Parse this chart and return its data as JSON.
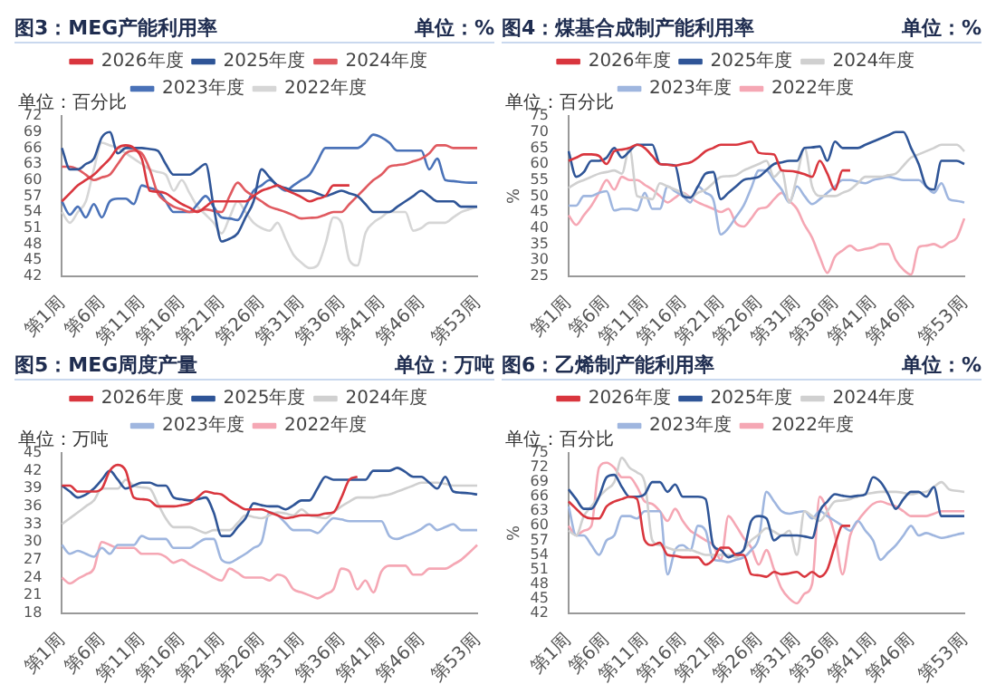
{
  "chart_data": [
    {
      "type": "line",
      "title": "图3：MEG产能利用率",
      "subtitle": "单位：%",
      "annotations": [
        "单位：百分比"
      ],
      "legend": "top",
      "grid": false,
      "categories": [
        "第1周",
        null,
        null,
        null,
        null,
        "第6周",
        null,
        null,
        null,
        null,
        "第11周",
        null,
        null,
        null,
        null,
        "第16周",
        null,
        null,
        null,
        null,
        "第21周",
        null,
        null,
        null,
        null,
        "第26周",
        null,
        null,
        null,
        null,
        "第31周",
        null,
        null,
        null,
        null,
        "第36周",
        null,
        null,
        null,
        null,
        "第41周",
        null,
        null,
        null,
        null,
        "第46周",
        null,
        null,
        null,
        null,
        null,
        null,
        "第53周"
      ],
      "ylim": [
        42,
        72
      ],
      "yticks": [
        42,
        45,
        48,
        51,
        54,
        57,
        60,
        63,
        66,
        69,
        72
      ],
      "series": [
        {
          "name": "2026年度",
          "color": "#d9363e",
          "values": [
            56,
            57.5,
            59,
            60,
            61,
            62.5,
            64,
            66,
            66.5,
            66,
            64,
            58,
            57.8,
            57.5,
            56.5,
            55.5,
            54.8,
            54,
            55,
            56,
            56,
            56,
            56,
            56,
            57,
            58,
            58.5,
            59,
            58.2,
            57.5,
            56.8,
            56,
            56.5,
            57,
            59,
            59,
            59,
            null,
            null,
            null,
            null,
            null,
            null,
            null,
            null,
            null,
            null,
            null,
            null,
            null,
            null,
            null,
            null
          ]
        },
        {
          "name": "2025年度",
          "color": "#2f5597",
          "values": [
            66,
            62,
            62,
            63,
            64,
            68,
            69,
            65,
            66,
            66,
            66,
            65.8,
            65.5,
            63,
            61,
            61,
            61,
            62,
            63,
            55,
            48.5,
            49,
            50,
            53,
            56,
            62,
            60.5,
            59,
            58.5,
            58,
            58,
            58,
            57.5,
            57,
            57.5,
            58,
            57.5,
            57,
            55.5,
            54,
            54,
            54,
            55,
            56,
            57,
            58,
            57,
            56,
            56,
            56,
            55,
            55,
            55
          ]
        },
        {
          "name": "2024年度",
          "color": "#e05a60",
          "values": [
            62.5,
            62.5,
            62,
            61,
            60,
            60.5,
            61,
            63,
            65,
            65.5,
            65,
            62,
            57.5,
            56,
            55,
            54.5,
            54,
            54.2,
            54.5,
            54.2,
            54,
            57,
            59.5,
            58,
            57,
            56,
            55,
            54.5,
            54,
            53.4,
            52.8,
            52.9,
            53,
            53.5,
            54,
            54,
            55.5,
            57,
            58.5,
            60,
            61,
            62.5,
            62.8,
            63,
            63.5,
            64,
            65,
            66.5,
            66.5,
            66,
            66,
            66,
            66
          ]
        },
        {
          "name": "2023年度",
          "color": "#4a72b8",
          "values": [
            56,
            53.5,
            55,
            53,
            55.5,
            53,
            56,
            56.5,
            56.5,
            55.5,
            59,
            58.5,
            58,
            56,
            54,
            54,
            54,
            55.5,
            57,
            55,
            53,
            52.8,
            52.5,
            55,
            58,
            59,
            60,
            59,
            58,
            59,
            60,
            61,
            63.5,
            66,
            66,
            66,
            66,
            66,
            67,
            68.5,
            68,
            67,
            65.5,
            65.5,
            65.5,
            65.5,
            62,
            64,
            60,
            59.8,
            59.6,
            59.5,
            59.5
          ]
        },
        {
          "name": "2022年度",
          "color": "#d6d6d6",
          "values": [
            54,
            52,
            54,
            56,
            62,
            67,
            66.5,
            66,
            65,
            64,
            63,
            62,
            61.5,
            61,
            58,
            60,
            57.5,
            55,
            53.5,
            52,
            50,
            53,
            56,
            54,
            52,
            51,
            50.5,
            52,
            49,
            46,
            44.5,
            43.5,
            44,
            48,
            53,
            52,
            45,
            44,
            50,
            52,
            53,
            54,
            54,
            54,
            50.5,
            51,
            52,
            52,
            52,
            53,
            54,
            54.5,
            55
          ]
        }
      ]
    },
    {
      "type": "line",
      "title": "图4：煤基合成制产能利用率",
      "subtitle": "单位：%",
      "ylabel": "%",
      "annotations": [
        "单位：百分比"
      ],
      "legend": "top",
      "grid": false,
      "categories": [
        "第1周",
        null,
        null,
        null,
        null,
        "第6周",
        null,
        null,
        null,
        null,
        "第11周",
        null,
        null,
        null,
        null,
        "第16周",
        null,
        null,
        null,
        null,
        "第21周",
        null,
        null,
        null,
        null,
        "第26周",
        null,
        null,
        null,
        null,
        "第31周",
        null,
        null,
        null,
        null,
        "第36周",
        null,
        null,
        null,
        null,
        "第41周",
        null,
        null,
        null,
        null,
        "第46周",
        null,
        null,
        null,
        null,
        null,
        null,
        "第53周"
      ],
      "ylim": [
        25,
        75
      ],
      "yticks": [
        25,
        30,
        35,
        40,
        45,
        50,
        55,
        60,
        65,
        70,
        75
      ],
      "series": [
        {
          "name": "2026年度",
          "color": "#d9363e",
          "values": [
            61,
            62,
            63,
            63,
            62.5,
            60,
            64,
            64.5,
            65,
            66,
            65,
            62.5,
            60,
            59.8,
            59.5,
            60,
            60.5,
            62,
            64,
            65,
            66,
            66,
            66,
            66.5,
            67,
            63.5,
            63.2,
            63,
            58,
            57.8,
            57.5,
            56.8,
            56,
            61,
            57,
            52,
            58,
            58,
            null,
            null,
            null,
            null,
            null,
            null,
            null,
            null,
            null,
            null,
            null,
            null,
            null,
            null,
            null
          ]
        },
        {
          "name": "2025年度",
          "color": "#2f5597",
          "values": [
            64,
            56,
            57.5,
            61,
            61,
            62,
            65,
            62,
            64,
            66,
            66,
            66,
            60,
            59.8,
            59.5,
            50,
            49.5,
            53,
            57,
            57.5,
            49,
            51,
            53,
            55,
            55.5,
            56,
            58,
            60,
            60.5,
            61,
            61,
            65,
            65.2,
            65.5,
            61,
            67,
            65,
            65,
            65,
            66,
            67,
            68,
            69,
            70,
            70,
            65,
            60,
            53,
            52,
            61,
            61,
            61,
            60
          ]
        },
        {
          "name": "2024年度",
          "color": "#d0d0d0",
          "values": [
            52.5,
            54,
            55,
            56,
            57,
            57.5,
            58,
            57,
            65,
            50,
            49.5,
            49,
            54,
            53,
            52,
            51,
            49.5,
            51,
            52,
            54,
            56,
            56.2,
            56.5,
            58,
            59,
            60,
            61,
            56,
            58,
            48,
            56,
            65,
            53,
            50,
            50,
            50,
            51,
            52,
            54,
            56,
            56,
            56,
            56.5,
            57,
            59.5,
            62,
            63,
            64,
            65,
            66,
            66,
            66,
            64
          ]
        },
        {
          "name": "2023年度",
          "color": "#9fb6df",
          "values": [
            47,
            47,
            50,
            50,
            51,
            51.5,
            45.5,
            46,
            46,
            45.5,
            51,
            46,
            46,
            53,
            51.5,
            50,
            48,
            53,
            51,
            49,
            38,
            40,
            43.5,
            47,
            52.5,
            58,
            58,
            55,
            52,
            48,
            53,
            50,
            47.5,
            49,
            51,
            53,
            55,
            55,
            54.5,
            54,
            55,
            55.5,
            56,
            55.5,
            55,
            55,
            55,
            53,
            51,
            54,
            49,
            48.5,
            48
          ]
        },
        {
          "name": "2022年度",
          "color": "#f5a7b4",
          "values": [
            44,
            41,
            44,
            47,
            51,
            55,
            52,
            56,
            55,
            55,
            53.5,
            52,
            50,
            48,
            49.5,
            51,
            49.5,
            48,
            47,
            46,
            45,
            46,
            41.5,
            40.5,
            43,
            46,
            46.5,
            49,
            51,
            48.5,
            46,
            41,
            37,
            31,
            26,
            31,
            33,
            34.5,
            33,
            33.5,
            34,
            35,
            35,
            30,
            27,
            25.5,
            34,
            34.5,
            35,
            34,
            35.5,
            37,
            43
          ]
        }
      ]
    },
    {
      "type": "line",
      "title": "图5：MEG周度产量",
      "subtitle": "单位：万吨",
      "annotations": [
        "单位：万吨"
      ],
      "legend": "top",
      "grid": false,
      "categories": [
        "第1周",
        null,
        null,
        null,
        null,
        "第6周",
        null,
        null,
        null,
        null,
        "第11周",
        null,
        null,
        null,
        null,
        "第16周",
        null,
        null,
        null,
        null,
        "第21周",
        null,
        null,
        null,
        null,
        "第26周",
        null,
        null,
        null,
        null,
        "第31周",
        null,
        null,
        null,
        null,
        "第36周",
        null,
        null,
        null,
        null,
        "第41周",
        null,
        null,
        null,
        null,
        "第46周",
        null,
        null,
        null,
        null,
        null,
        null,
        "第53周"
      ],
      "ylim": [
        18,
        45
      ],
      "yticks": [
        18,
        21,
        24,
        27,
        30,
        33,
        36,
        39,
        42,
        45
      ],
      "series": [
        {
          "name": "2026年度",
          "color": "#d9363e",
          "values": [
            39.5,
            39.5,
            38.5,
            38.5,
            38.5,
            39,
            42,
            43,
            42,
            37.5,
            37.2,
            37,
            36,
            36,
            36,
            36.2,
            36.5,
            37.5,
            38.5,
            38.2,
            38,
            37,
            36.2,
            35.5,
            35.5,
            35.5,
            35,
            34.5,
            34,
            34.2,
            34.5,
            34.5,
            34.5,
            34.8,
            35,
            37.5,
            40.5,
            41,
            null,
            null,
            null,
            null,
            null,
            null,
            null,
            null,
            null,
            null,
            null,
            null,
            null,
            null,
            null
          ]
        },
        {
          "name": "2025年度",
          "color": "#2f5597",
          "values": [
            39.5,
            38.5,
            37.5,
            38,
            39,
            40.5,
            42,
            40.5,
            39,
            39.5,
            40,
            40,
            39.5,
            39.5,
            37.5,
            37.2,
            37,
            37.2,
            37.5,
            35,
            31,
            31,
            32.5,
            34,
            36.5,
            36.2,
            36,
            36,
            35.5,
            36.2,
            37,
            37,
            39,
            41,
            40.5,
            40.5,
            40.5,
            40.5,
            40.5,
            42,
            42,
            42,
            42.5,
            41.8,
            41,
            41,
            40,
            39,
            41,
            38.5,
            38.3,
            38.2,
            38
          ]
        },
        {
          "name": "2024年度",
          "color": "#d0d0d0",
          "values": [
            33,
            34,
            35,
            36,
            37,
            39,
            39,
            39,
            40.5,
            39.5,
            39.2,
            39,
            36.5,
            34,
            32.5,
            32.5,
            32.5,
            32,
            31.5,
            32,
            32,
            32,
            33.2,
            34.5,
            34.2,
            34,
            34.5,
            35,
            34.8,
            34.5,
            35.5,
            34.5,
            34.2,
            34,
            35,
            36,
            36.8,
            37.5,
            37.5,
            37.5,
            37.8,
            38,
            38.5,
            39,
            39.5,
            40,
            40,
            40,
            39.8,
            39.5,
            39.5,
            39.5,
            39.5
          ]
        },
        {
          "name": "2023年度",
          "color": "#9fb6df",
          "values": [
            29.5,
            28,
            28.5,
            28,
            27.5,
            29,
            28,
            29.5,
            29.5,
            29.5,
            31,
            30.5,
            30.5,
            30.5,
            29,
            29,
            29,
            29.8,
            30.5,
            30.5,
            27,
            26.5,
            27.2,
            28,
            29,
            30,
            35,
            34.5,
            33.2,
            32,
            32,
            32,
            31.5,
            32.8,
            34,
            33.8,
            33.5,
            33.5,
            33.5,
            33.5,
            33.5,
            31,
            30.5,
            31,
            31.5,
            32.2,
            33,
            32,
            32.5,
            33,
            32,
            32,
            32
          ]
        },
        {
          "name": "2022年度",
          "color": "#f5a7b4",
          "values": [
            24,
            23,
            23.8,
            24.5,
            25.5,
            30,
            29.5,
            29,
            29,
            29,
            28,
            28,
            28,
            27.5,
            26.5,
            27,
            26.2,
            25.5,
            24.8,
            24,
            23.5,
            25.5,
            24.8,
            24,
            24,
            24,
            23.5,
            24.5,
            24,
            22,
            21.5,
            21,
            20.5,
            21.2,
            22,
            25.5,
            25,
            22,
            23.5,
            21.5,
            25,
            26,
            26,
            26,
            24.5,
            24.5,
            25.5,
            25.5,
            25.5,
            26.2,
            27,
            28.2,
            29.5
          ]
        }
      ]
    },
    {
      "type": "line",
      "title": "图6：乙烯制产能利用率",
      "subtitle": "单位：%",
      "ylabel": "%",
      "annotations": [
        "单位：百分比"
      ],
      "legend": "top",
      "grid": false,
      "categories": [
        "第1周",
        null,
        null,
        null,
        null,
        "第6周",
        null,
        null,
        null,
        null,
        "第11周",
        null,
        null,
        null,
        null,
        "第16周",
        null,
        null,
        null,
        null,
        "第21周",
        null,
        null,
        null,
        null,
        "第26周",
        null,
        null,
        null,
        null,
        "第31周",
        null,
        null,
        null,
        null,
        "第36周",
        null,
        null,
        null,
        null,
        "第41周",
        null,
        null,
        null,
        null,
        "第46周",
        null,
        null,
        null,
        null,
        null,
        null,
        "第53周"
      ],
      "ylim": [
        42,
        75
      ],
      "yticks": [
        42,
        45,
        48,
        51,
        54,
        57,
        60,
        63,
        66,
        69,
        72,
        75
      ],
      "series": [
        {
          "name": "2026年度",
          "color": "#d9363e",
          "values": [
            65,
            63.5,
            62,
            61.5,
            61.5,
            64,
            65,
            65.5,
            66,
            65.5,
            57,
            56,
            56.5,
            54,
            53.8,
            53.5,
            53.5,
            53.5,
            52,
            53,
            55.5,
            55.5,
            54,
            54,
            50,
            49.8,
            49.5,
            50.5,
            50,
            50.2,
            50.5,
            49.5,
            50.5,
            49.5,
            51,
            56,
            60,
            60,
            null,
            null,
            null,
            null,
            null,
            null,
            null,
            null,
            null,
            null,
            null,
            null,
            null,
            null,
            null
          ]
        },
        {
          "name": "2025年度",
          "color": "#2f5597",
          "values": [
            67.5,
            65.5,
            63.5,
            63.5,
            66,
            70,
            70.5,
            68,
            66,
            66,
            66.5,
            69,
            69,
            67,
            68.5,
            66,
            66,
            66,
            65.5,
            56,
            55,
            53.5,
            54.2,
            55,
            61,
            62,
            61.5,
            57,
            58,
            58,
            58,
            57.8,
            57.5,
            63,
            65,
            66.5,
            66.2,
            66,
            66.2,
            66.5,
            70,
            69,
            66.5,
            63.5,
            65.5,
            67,
            67,
            66,
            68,
            62,
            62,
            62,
            62
          ]
        },
        {
          "name": "2024年度",
          "color": "#d0d0d0",
          "values": [
            59,
            58,
            62,
            64,
            66,
            67.5,
            69,
            74,
            72,
            71,
            69,
            57,
            56,
            55.5,
            55,
            55,
            55,
            54.5,
            54,
            54,
            54,
            54,
            53.5,
            55,
            57,
            58.2,
            59.5,
            58.8,
            58,
            59,
            54,
            63,
            62,
            61,
            63,
            65,
            65.2,
            65.5,
            66,
            66.5,
            66.8,
            67,
            67,
            67,
            66.8,
            66.5,
            66.8,
            67,
            68,
            69,
            67.5,
            67.2,
            67
          ]
        },
        {
          "name": "2023年度",
          "color": "#9fb6df",
          "values": [
            64,
            58,
            58,
            56,
            54,
            57,
            58,
            62,
            62,
            61.5,
            63,
            63,
            63,
            50,
            55,
            56,
            55,
            60,
            59,
            53,
            52.8,
            52.5,
            53,
            53.5,
            55,
            57.5,
            67,
            65,
            63,
            62.5,
            62.8,
            63,
            61.5,
            63,
            62,
            61,
            60,
            59,
            61,
            59,
            57,
            53,
            54.5,
            56,
            58,
            60,
            58,
            58.5,
            58,
            57.5,
            57.8,
            58.2,
            58.5
          ]
        },
        {
          "name": "2022年度",
          "color": "#f5a7b4",
          "values": [
            60,
            58,
            59,
            60,
            72,
            73,
            72,
            70,
            70,
            68,
            65,
            64.5,
            63,
            61,
            63.5,
            61,
            59,
            58,
            57,
            56,
            53,
            62,
            60,
            57.5,
            55.5,
            52,
            55,
            51,
            47,
            45,
            44,
            46,
            48,
            66,
            63,
            58,
            50,
            58,
            61,
            63,
            64.5,
            65,
            64.5,
            64,
            63,
            62,
            62,
            62,
            62.5,
            63,
            63,
            63,
            63
          ]
        }
      ]
    }
  ]
}
